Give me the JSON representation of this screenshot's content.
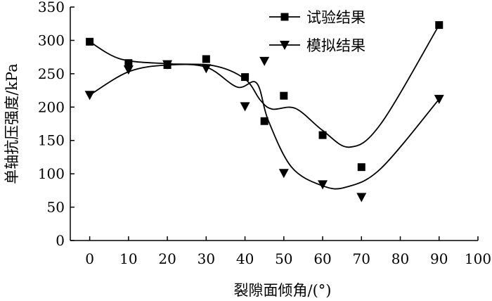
{
  "chart_data": {
    "type": "scatter",
    "title": "",
    "xlabel": "裂隙面倾角/(°)",
    "ylabel": "单轴抗压强度/kPa",
    "xlim": [
      -5,
      100
    ],
    "ylim": [
      0,
      350
    ],
    "xticks": [
      0,
      10,
      20,
      30,
      40,
      50,
      60,
      70,
      80,
      90,
      100
    ],
    "yticks": [
      0,
      50,
      100,
      150,
      200,
      250,
      300,
      350
    ],
    "legend_position": "top-right",
    "series": [
      {
        "name": "试验结果",
        "marker": "square",
        "x": [
          0,
          10,
          20,
          30,
          40,
          45,
          50,
          60,
          70,
          90
        ],
        "y": [
          298,
          266,
          263,
          272,
          245,
          179,
          217,
          158,
          110,
          323
        ],
        "curve": [
          [
            0,
            298
          ],
          [
            8,
            272
          ],
          [
            20,
            265
          ],
          [
            32,
            262
          ],
          [
            40,
            242
          ],
          [
            44,
            210
          ],
          [
            47,
            197
          ],
          [
            53,
            198
          ],
          [
            60,
            165
          ],
          [
            67,
            140
          ],
          [
            75,
            175
          ],
          [
            90,
            323
          ]
        ]
      },
      {
        "name": "模拟结果",
        "marker": "triangle-down",
        "x": [
          0,
          10,
          20,
          30,
          40,
          45,
          50,
          60,
          70,
          90
        ],
        "y": [
          218,
          256,
          264,
          258,
          201,
          269,
          101,
          84,
          65,
          212
        ],
        "curve": [
          [
            0,
            218
          ],
          [
            10,
            253
          ],
          [
            20,
            263
          ],
          [
            30,
            260
          ],
          [
            38,
            230
          ],
          [
            43,
            236
          ],
          [
            46,
            180
          ],
          [
            52,
            110
          ],
          [
            60,
            82
          ],
          [
            66,
            80
          ],
          [
            75,
            108
          ],
          [
            90,
            212
          ]
        ]
      }
    ]
  }
}
